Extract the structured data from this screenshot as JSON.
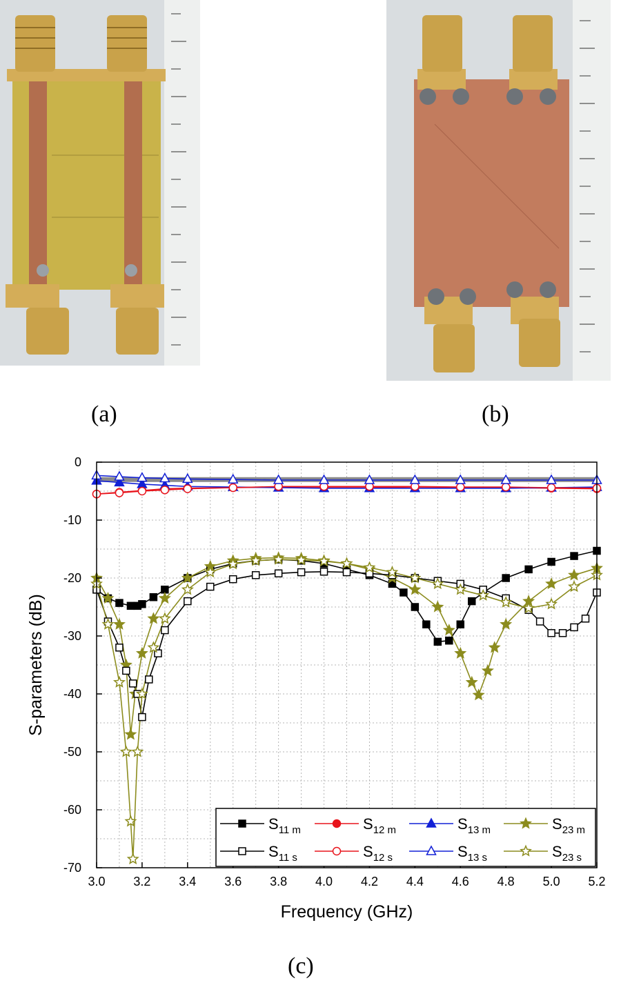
{
  "captions": {
    "a": "(a)",
    "b": "(b)",
    "c": "(c)"
  },
  "colors": {
    "black": "#000000",
    "red": "#e8141c",
    "blue": "#1220d6",
    "olive": "#8c8c1e",
    "gray": "#8a8a8a",
    "pcb_substrate": "#c9b34a",
    "copper": "#c27c5e",
    "connector_gold": "#c9a24a"
  },
  "chart_data": {
    "type": "line",
    "xlabel": "Frequency (GHz)",
    "ylabel": "S-parameters (dB)",
    "xlim": [
      3.0,
      5.2
    ],
    "ylim": [
      -70,
      0
    ],
    "x_ticks": [
      "3.0",
      "3.2",
      "3.4",
      "3.6",
      "3.8",
      "4.0",
      "4.2",
      "4.4",
      "4.6",
      "4.8",
      "5.0",
      "5.2"
    ],
    "y_ticks": [
      "0",
      "-10",
      "-20",
      "-30",
      "-40",
      "-50",
      "-60",
      "-70"
    ],
    "grid": true,
    "legend_position": "bottom-right",
    "series": [
      {
        "name": "S11 m",
        "label": "S",
        "sub": "11 m",
        "color": "#000000",
        "marker": "square-filled",
        "x": [
          3.0,
          3.05,
          3.1,
          3.15,
          3.18,
          3.2,
          3.25,
          3.3,
          3.4,
          3.5,
          3.6,
          3.7,
          3.8,
          3.9,
          4.0,
          4.1,
          4.2,
          4.3,
          4.35,
          4.4,
          4.45,
          4.5,
          4.55,
          4.6,
          4.65,
          4.7,
          4.8,
          4.9,
          5.0,
          5.1,
          5.2
        ],
        "y": [
          -22,
          -23.5,
          -24.3,
          -24.8,
          -24.8,
          -24.5,
          -23.3,
          -22,
          -20,
          -18.5,
          -17.5,
          -17,
          -16.8,
          -17,
          -17.5,
          -18.5,
          -19.5,
          -21,
          -22.5,
          -25,
          -28,
          -31,
          -30.8,
          -28,
          -24,
          -22.5,
          -20,
          -18.5,
          -17.2,
          -16.2,
          -15.3
        ]
      },
      {
        "name": "S12 m",
        "label": "S",
        "sub": "12 m",
        "color": "#e8141c",
        "marker": "circle-filled",
        "x": [
          3.0,
          3.1,
          3.2,
          3.3,
          3.4,
          3.6,
          3.8,
          4.0,
          4.2,
          4.4,
          4.6,
          4.8,
          5.0,
          5.2
        ],
        "y": [
          -5.5,
          -5.2,
          -4.9,
          -4.6,
          -4.5,
          -4.4,
          -4.3,
          -4.3,
          -4.3,
          -4.4,
          -4.4,
          -4.4,
          -4.5,
          -4.6
        ]
      },
      {
        "name": "S13 m",
        "label": "S",
        "sub": "13 m",
        "color": "#1220d6",
        "marker": "triangle-filled",
        "x": [
          3.0,
          3.1,
          3.2,
          3.3,
          3.4,
          3.6,
          3.8,
          4.0,
          4.2,
          4.4,
          4.6,
          4.8,
          5.0,
          5.2
        ],
        "y": [
          -3.2,
          -3.5,
          -3.8,
          -4.0,
          -4.2,
          -4.3,
          -4.4,
          -4.5,
          -4.5,
          -4.5,
          -4.5,
          -4.5,
          -4.4,
          -4.3
        ]
      },
      {
        "name": "S23 m",
        "label": "S",
        "sub": "23 m",
        "color": "#8c8c1e",
        "marker": "star-filled",
        "x": [
          3.0,
          3.05,
          3.1,
          3.13,
          3.15,
          3.17,
          3.2,
          3.25,
          3.3,
          3.4,
          3.5,
          3.6,
          3.7,
          3.8,
          3.9,
          4.0,
          4.1,
          4.2,
          4.3,
          4.4,
          4.5,
          4.55,
          4.6,
          4.65,
          4.68,
          4.72,
          4.75,
          4.8,
          4.9,
          5.0,
          5.1,
          5.2
        ],
        "y": [
          -20,
          -23.5,
          -28,
          -35,
          -47,
          -40,
          -33,
          -27,
          -23.5,
          -20,
          -18,
          -17,
          -16.6,
          -16.5,
          -16.6,
          -17,
          -17.5,
          -18.5,
          -20,
          -22,
          -25,
          -29,
          -33,
          -38,
          -40.2,
          -36,
          -32,
          -28,
          -24,
          -21,
          -19.5,
          -18.3
        ]
      },
      {
        "name": "S11 s",
        "label": "S",
        "sub": "11 s",
        "color": "#000000",
        "marker": "square-open",
        "x": [
          3.0,
          3.05,
          3.1,
          3.13,
          3.16,
          3.18,
          3.2,
          3.23,
          3.27,
          3.3,
          3.4,
          3.5,
          3.6,
          3.7,
          3.8,
          3.9,
          4.0,
          4.1,
          4.2,
          4.3,
          4.4,
          4.5,
          4.6,
          4.7,
          4.8,
          4.9,
          4.95,
          5.0,
          5.05,
          5.1,
          5.15,
          5.2
        ],
        "y": [
          -22,
          -27.5,
          -32,
          -36,
          -38.2,
          -40,
          -44,
          -37.5,
          -33,
          -29,
          -24,
          -21.5,
          -20.2,
          -19.5,
          -19.2,
          -19,
          -18.9,
          -19,
          -19.2,
          -19.5,
          -20,
          -20.5,
          -21,
          -22,
          -23.5,
          -25.5,
          -27.5,
          -29.5,
          -29.5,
          -28.5,
          -27,
          -22.5
        ]
      },
      {
        "name": "S12 s",
        "label": "S",
        "sub": "12 s",
        "color": "#e8141c",
        "marker": "circle-open",
        "x": [
          3.0,
          3.1,
          3.2,
          3.3,
          3.4,
          3.6,
          3.8,
          4.0,
          4.2,
          4.4,
          4.6,
          4.8,
          5.0,
          5.2
        ],
        "y": [
          -5.5,
          -5.3,
          -5.0,
          -4.8,
          -4.6,
          -4.4,
          -4.2,
          -4.2,
          -4.2,
          -4.2,
          -4.3,
          -4.3,
          -4.4,
          -4.5
        ]
      },
      {
        "name": "S13 s",
        "label": "S",
        "sub": "13 s",
        "color": "#1220d6",
        "marker": "triangle-open",
        "x": [
          3.0,
          3.1,
          3.2,
          3.3,
          3.4,
          3.6,
          3.8,
          4.0,
          4.2,
          4.4,
          4.6,
          4.8,
          5.0,
          5.2
        ],
        "y": [
          -2.3,
          -2.5,
          -2.7,
          -2.8,
          -2.9,
          -3.0,
          -3.1,
          -3.1,
          -3.1,
          -3.1,
          -3.1,
          -3.1,
          -3.1,
          -3.1
        ]
      },
      {
        "name": "S23 s",
        "label": "S",
        "sub": "23 s",
        "color": "#8c8c1e",
        "marker": "star-open",
        "x": [
          3.0,
          3.05,
          3.1,
          3.13,
          3.15,
          3.16,
          3.18,
          3.2,
          3.25,
          3.3,
          3.4,
          3.5,
          3.6,
          3.7,
          3.8,
          3.9,
          4.0,
          4.1,
          4.2,
          4.3,
          4.4,
          4.5,
          4.6,
          4.7,
          4.8,
          4.9,
          5.0,
          5.1,
          5.2
        ],
        "y": [
          -21,
          -28,
          -38,
          -50,
          -62,
          -68.5,
          -50,
          -40,
          -32,
          -27,
          -22,
          -19,
          -17.6,
          -17,
          -16.8,
          -16.9,
          -17.1,
          -17.5,
          -18.2,
          -19,
          -20,
          -21,
          -22,
          -23,
          -24.2,
          -25.2,
          -24.5,
          -21.5,
          -19.5
        ]
      }
    ]
  }
}
